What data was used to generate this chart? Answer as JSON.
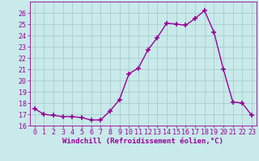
{
  "x": [
    0,
    1,
    2,
    3,
    4,
    5,
    6,
    7,
    8,
    9,
    10,
    11,
    12,
    13,
    14,
    15,
    16,
    17,
    18,
    19,
    20,
    21,
    22,
    23
  ],
  "y": [
    17.5,
    17.0,
    16.9,
    16.8,
    16.8,
    16.7,
    16.5,
    16.5,
    17.3,
    18.3,
    20.6,
    21.1,
    22.7,
    23.8,
    25.1,
    25.0,
    24.9,
    25.5,
    26.2,
    24.3,
    21.0,
    18.1,
    18.0,
    16.9
  ],
  "line_color": "#990099",
  "marker": "+",
  "markersize": 4,
  "linewidth": 1.0,
  "xlabel": "Windchill (Refroidissement éolien,°C)",
  "xlim": [
    -0.5,
    23.5
  ],
  "ylim": [
    16,
    27
  ],
  "yticks": [
    16,
    17,
    18,
    19,
    20,
    21,
    22,
    23,
    24,
    25,
    26
  ],
  "xticks": [
    0,
    1,
    2,
    3,
    4,
    5,
    6,
    7,
    8,
    9,
    10,
    11,
    12,
    13,
    14,
    15,
    16,
    17,
    18,
    19,
    20,
    21,
    22,
    23
  ],
  "bg_color": "#c8eaea",
  "grid_color": "#aacccc",
  "tick_color": "#990099",
  "label_color": "#990099",
  "xlabel_fontsize": 6.5,
  "tick_fontsize": 6.0
}
